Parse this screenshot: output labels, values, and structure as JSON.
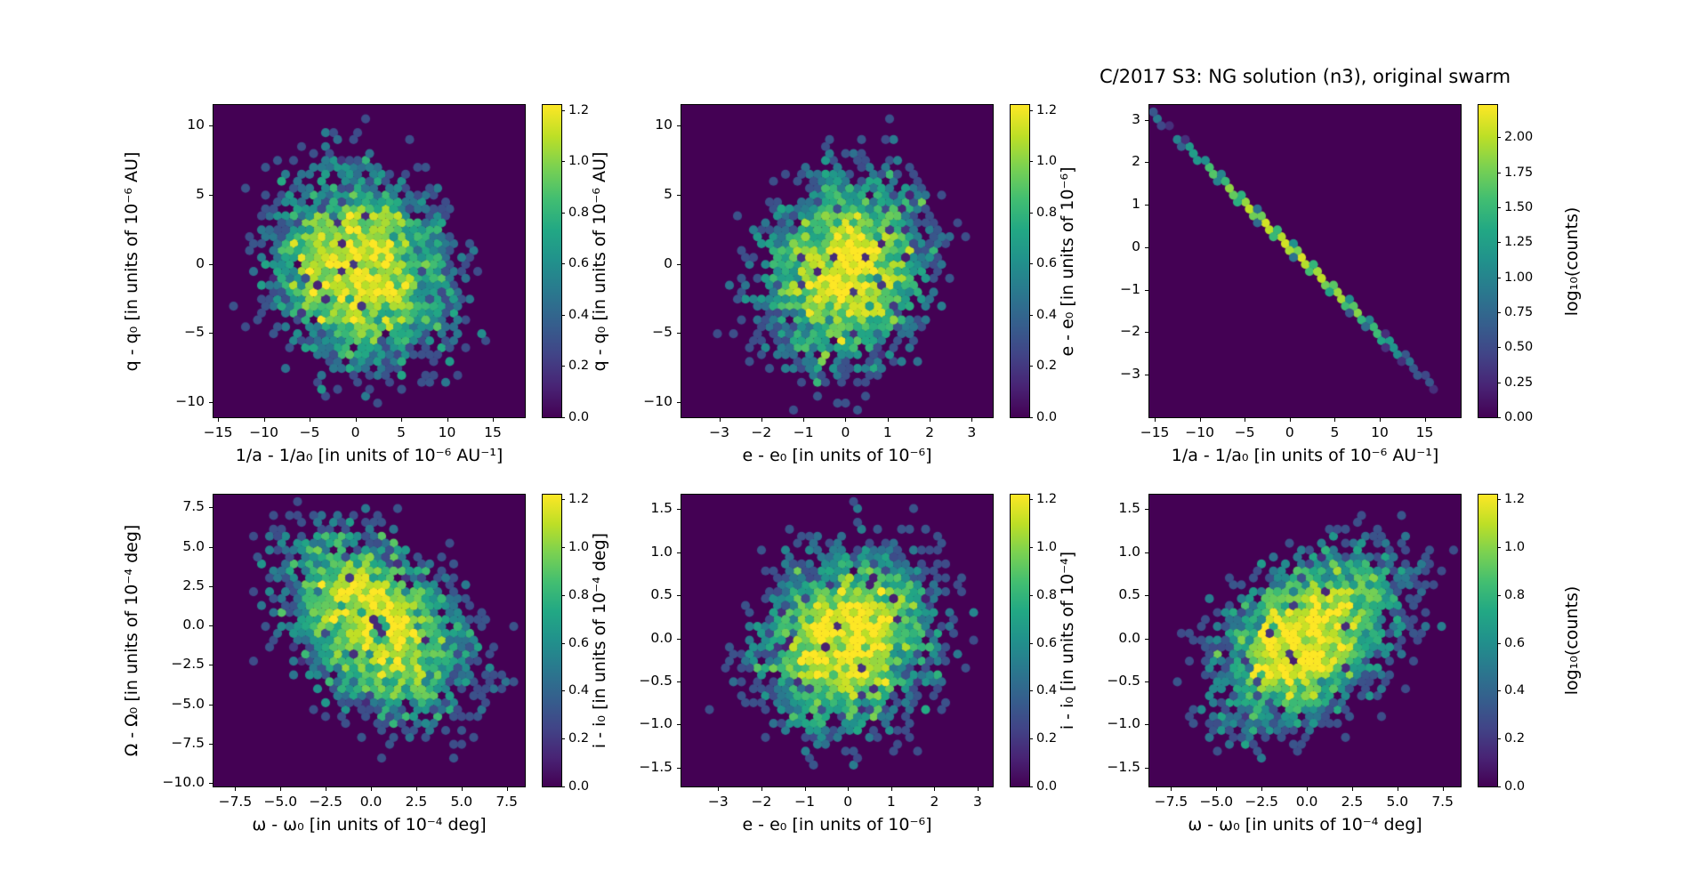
{
  "title": "C/2017 S3: NG solution (n3),  original swarm",
  "colors": {
    "background": "#ffffff",
    "hexbin_zero_count": "#440154",
    "viridis_max": "#fde725",
    "text": "#000000"
  },
  "colorbar_label": "log₁₀(counts)",
  "chart_data": [
    {
      "type": "hexbin",
      "position": "top-left",
      "xlabel": "1/a - 1/a₀ [in units of 10⁻⁶ AU⁻¹]",
      "ylabel": "q - q₀ [in units of 10⁻⁶ AU]",
      "xticks": {
        "values": [
          -15,
          -10,
          -5,
          0,
          5,
          10,
          15
        ],
        "labels": [
          "−15",
          "−10",
          "−5",
          "0",
          "5",
          "10",
          "15"
        ]
      },
      "yticks": {
        "values": [
          10,
          5,
          0,
          -5,
          -10
        ],
        "labels": [
          "10",
          "5",
          "0",
          "−5",
          "−10"
        ]
      },
      "xlim": [
        -15.5,
        18.5
      ],
      "ylim": [
        -11.1,
        11.5
      ],
      "colorbar": {
        "ticks": [
          1.2,
          1.0,
          0.8,
          0.6,
          0.4,
          0.2,
          0.0
        ],
        "tick_labels": [
          "1.2",
          "1.0",
          "0.8",
          "0.6",
          "0.4",
          "0.2",
          "0.0"
        ],
        "vmax": 1.22,
        "units": "log10(counts)"
      },
      "distribution": {
        "kind": "gaussian",
        "center": [
          0.5,
          -0.5
        ],
        "sigma": [
          5.2,
          3.8
        ],
        "correlation": -0.15,
        "peak_log10_counts": 1.2
      }
    },
    {
      "type": "hexbin",
      "position": "top-middle",
      "xlabel": "e - e₀ [in units of 10⁻⁶]",
      "ylabel": "q - q₀ [in units of 10⁻⁶ AU]",
      "xticks": {
        "values": [
          -3,
          -2,
          -1,
          0,
          1,
          2,
          3
        ],
        "labels": [
          "−3",
          "−2",
          "−1",
          "0",
          "1",
          "2",
          "3"
        ]
      },
      "yticks": {
        "values": [
          10,
          5,
          0,
          -5,
          -10
        ],
        "labels": [
          "10",
          "5",
          "0",
          "−5",
          "−10"
        ]
      },
      "xlim": [
        -3.9,
        3.5
      ],
      "ylim": [
        -11.1,
        11.5
      ],
      "colorbar": {
        "ticks": [
          1.2,
          1.0,
          0.8,
          0.6,
          0.4,
          0.2,
          0.0
        ],
        "tick_labels": [
          "1.2",
          "1.0",
          "0.8",
          "0.6",
          "0.4",
          "0.2",
          "0.0"
        ],
        "vmax": 1.22,
        "units": "log10(counts)"
      },
      "distribution": {
        "kind": "gaussian",
        "center": [
          0.0,
          -0.5
        ],
        "sigma": [
          1.05,
          3.8
        ],
        "correlation": 0.15,
        "peak_log10_counts": 1.2
      }
    },
    {
      "type": "hexbin",
      "position": "top-right",
      "xlabel": "1/a - 1/a₀ [in units of 10⁻⁶ AU⁻¹]",
      "ylabel": "e - e₀ [in units of 10⁻⁶]",
      "xticks": {
        "values": [
          -15,
          -10,
          -5,
          0,
          5,
          10,
          15
        ],
        "labels": [
          "−15",
          "−10",
          "−5",
          "0",
          "5",
          "10",
          "15"
        ]
      },
      "yticks": {
        "values": [
          3,
          2,
          1,
          0,
          -1,
          -2,
          -3
        ],
        "labels": [
          "3",
          "2",
          "1",
          "0",
          "−1",
          "−2",
          "−3"
        ]
      },
      "xlim": [
        -15.6,
        19.0
      ],
      "ylim": [
        -4.0,
        3.35
      ],
      "colorbar": {
        "ticks": [
          2.0,
          1.75,
          1.5,
          1.25,
          1.0,
          0.75,
          0.5,
          0.25,
          0.0
        ],
        "tick_labels": [
          "2.00",
          "1.75",
          "1.50",
          "1.25",
          "1.00",
          "0.75",
          "0.50",
          "0.25",
          "0.00"
        ],
        "vmax": 2.23,
        "label": "log₁₀(counts)",
        "units": "log10(counts)"
      },
      "distribution": {
        "kind": "line",
        "slope": -0.2065,
        "intercept": 0.0,
        "x_sigma": 5.6,
        "x_extent": [
          -15.5,
          15.5
        ],
        "peak_log10_counts": 2.2
      }
    },
    {
      "type": "hexbin",
      "position": "bottom-left",
      "xlabel": "ω - ω₀ [in units of 10⁻⁴ deg]",
      "ylabel": "Ω - Ω₀ [in units of 10⁻⁴ deg]",
      "xticks": {
        "values": [
          -7.5,
          -5.0,
          -2.5,
          0.0,
          2.5,
          5.0,
          7.5
        ],
        "labels": [
          "−7.5",
          "−5.0",
          "−2.5",
          "0.0",
          "2.5",
          "5.0",
          "7.5"
        ]
      },
      "yticks": {
        "values": [
          7.5,
          5.0,
          2.5,
          0.0,
          -2.5,
          -5.0,
          -7.5,
          -10.0
        ],
        "labels": [
          "7.5",
          "5.0",
          "2.5",
          "0.0",
          "−2.5",
          "−5.0",
          "−7.5",
          "−10.0"
        ]
      },
      "xlim": [
        -8.7,
        8.5
      ],
      "ylim": [
        -10.2,
        8.3
      ],
      "colorbar": {
        "ticks": [
          1.2,
          1.0,
          0.8,
          0.6,
          0.4,
          0.2,
          0.0
        ],
        "tick_labels": [
          "1.2",
          "1.0",
          "0.8",
          "0.6",
          "0.4",
          "0.2",
          "0.0"
        ],
        "vmax": 1.22,
        "units": "log10(counts)"
      },
      "distribution": {
        "kind": "gaussian",
        "center": [
          0.3,
          0.0
        ],
        "sigma": [
          2.7,
          3.2
        ],
        "correlation": -0.35,
        "peak_log10_counts": 1.2
      }
    },
    {
      "type": "hexbin",
      "position": "bottom-middle",
      "xlabel": "e - e₀ [in units of 10⁻⁶]",
      "ylabel": "i - i₀ [in units of 10⁻⁴ deg]",
      "xticks": {
        "values": [
          -3,
          -2,
          -1,
          0,
          1,
          2,
          3
        ],
        "labels": [
          "−3",
          "−2",
          "−1",
          "0",
          "1",
          "2",
          "3"
        ]
      },
      "yticks": {
        "values": [
          1.5,
          1.0,
          0.5,
          0.0,
          -0.5,
          -1.0,
          -1.5
        ],
        "labels": [
          "1.5",
          "1.0",
          "0.5",
          "0.0",
          "−0.5",
          "−1.0",
          "−1.5"
        ]
      },
      "xlim": [
        -3.85,
        3.35
      ],
      "ylim": [
        -1.72,
        1.67
      ],
      "colorbar": {
        "ticks": [
          1.2,
          1.0,
          0.8,
          0.6,
          0.4,
          0.2,
          0.0
        ],
        "tick_labels": [
          "1.2",
          "1.0",
          "0.8",
          "0.6",
          "0.4",
          "0.2",
          "0.0"
        ],
        "vmax": 1.22,
        "units": "log10(counts)"
      },
      "distribution": {
        "kind": "gaussian",
        "center": [
          0.0,
          0.0
        ],
        "sigma": [
          1.05,
          0.55
        ],
        "correlation": 0.15,
        "peak_log10_counts": 1.25
      }
    },
    {
      "type": "hexbin",
      "position": "bottom-right",
      "xlabel": "ω - ω₀ [in units of 10⁻⁴ deg]",
      "ylabel": "i - i₀ [in units of 10⁻⁴]",
      "xticks": {
        "values": [
          -7.5,
          -5.0,
          -2.5,
          0.0,
          2.5,
          5.0,
          7.5
        ],
        "labels": [
          "−7.5",
          "−5.0",
          "−2.5",
          "0.0",
          "2.5",
          "5.0",
          "7.5"
        ]
      },
      "yticks": {
        "values": [
          1.5,
          1.0,
          0.5,
          0.0,
          -0.5,
          -1.0,
          -1.5
        ],
        "labels": [
          "1.5",
          "1.0",
          "0.5",
          "0.0",
          "−0.5",
          "−1.0",
          "−1.5"
        ]
      },
      "xlim": [
        -8.7,
        8.5
      ],
      "ylim": [
        -1.72,
        1.67
      ],
      "colorbar": {
        "ticks": [
          1.2,
          1.0,
          0.8,
          0.6,
          0.4,
          0.2,
          0.0
        ],
        "tick_labels": [
          "1.2",
          "1.0",
          "0.8",
          "0.6",
          "0.4",
          "0.2",
          "0.0"
        ],
        "vmax": 1.22,
        "label": "log₁₀(counts)",
        "units": "log10(counts)"
      },
      "distribution": {
        "kind": "gaussian",
        "center": [
          0.0,
          0.0
        ],
        "sigma": [
          2.7,
          0.55
        ],
        "correlation": 0.45,
        "peak_log10_counts": 1.25
      }
    }
  ]
}
